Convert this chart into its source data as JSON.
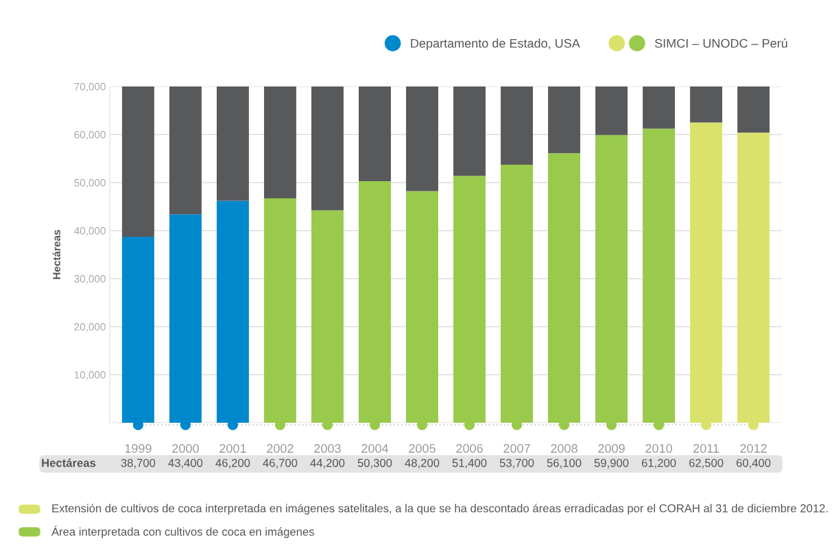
{
  "chart_data": {
    "type": "bar",
    "categories": [
      "1999",
      "2000",
      "2001",
      "2002",
      "2003",
      "2004",
      "2005",
      "2006",
      "2007",
      "2008",
      "2009",
      "2010",
      "2011",
      "2012"
    ],
    "ylabel": "Hectáreas",
    "stacked": true,
    "series": [
      {
        "name": "Departamento de Estado, USA",
        "color": "#0088cc",
        "values": [
          38700,
          43400,
          46200,
          0,
          0,
          0,
          0,
          0,
          0,
          0,
          0,
          0,
          0,
          0
        ]
      },
      {
        "name": "SIMCI – UNODC – Perú",
        "color": "#99ca4c",
        "values": [
          0,
          0,
          0,
          46700,
          44200,
          50300,
          48200,
          51400,
          53700,
          56100,
          59900,
          61200,
          0,
          0
        ]
      },
      {
        "color": "#dbe26c",
        "values": [
          0,
          0,
          0,
          0,
          0,
          0,
          0,
          0,
          0,
          0,
          0,
          0,
          62500,
          60400
        ]
      },
      {
        "color": "#58595b",
        "values": [
          31300,
          26600,
          23800,
          23300,
          25800,
          19700,
          21800,
          18600,
          16300,
          13900,
          10100,
          8800,
          7500,
          9600
        ]
      }
    ],
    "value_labels": [
      "38,700",
      "43,400",
      "46,200",
      "46,700",
      "44,200",
      "50,300",
      "48,200",
      "51,400",
      "53,700",
      "56,100",
      "59,900",
      "61,200",
      "62,500",
      "60,400"
    ],
    "ylim": [
      0,
      70000
    ],
    "yticks": [
      {
        "value": 0,
        "label": null
      },
      {
        "value": 10000,
        "label": "10,000"
      },
      {
        "value": 20000,
        "label": "20,000"
      },
      {
        "value": 30000,
        "label": "30,000"
      },
      {
        "value": 40000,
        "label": "40,000"
      },
      {
        "value": 50000,
        "label": "50,000"
      },
      {
        "value": 60000,
        "label": "60,000"
      },
      {
        "value": 70000,
        "label": "70,000"
      }
    ],
    "grid": "y",
    "legend": "top right",
    "annotations": [
      "Hectáreas",
      "Extensión de cultivos de coca interpretada en imágenes satelitales, a la que se ha descontado áreas erradicadas por el CORAH al 31 de diciembre 2012.",
      "Área interpretada con cultivos de coca en imágenes"
    ]
  }
}
